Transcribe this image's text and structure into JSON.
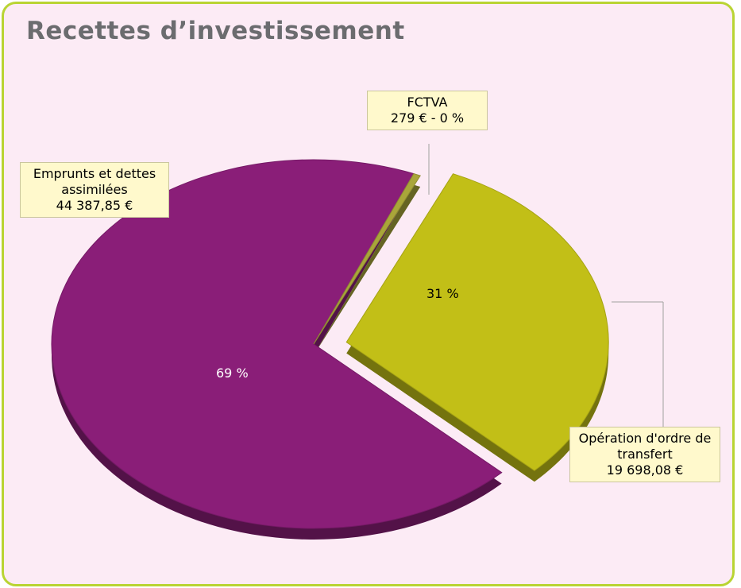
{
  "chart_data": {
    "type": "pie",
    "title": "Recettes d’investissement",
    "categories": [
      "Opération d'ordre de transfert",
      "Emprunts et dettes assimilées",
      "FCTVA"
    ],
    "values": [
      19698.08,
      44387.85,
      279
    ],
    "value_labels": [
      "19 698,08 €",
      "44 387,85 €",
      "279 € - 0 %"
    ],
    "percent_labels": [
      "31 %",
      "69 %",
      null
    ],
    "colors": [
      "#c2bf17",
      "#8a1e78",
      "#a9a63a"
    ],
    "exploded": [
      true,
      false,
      false
    ]
  }
}
